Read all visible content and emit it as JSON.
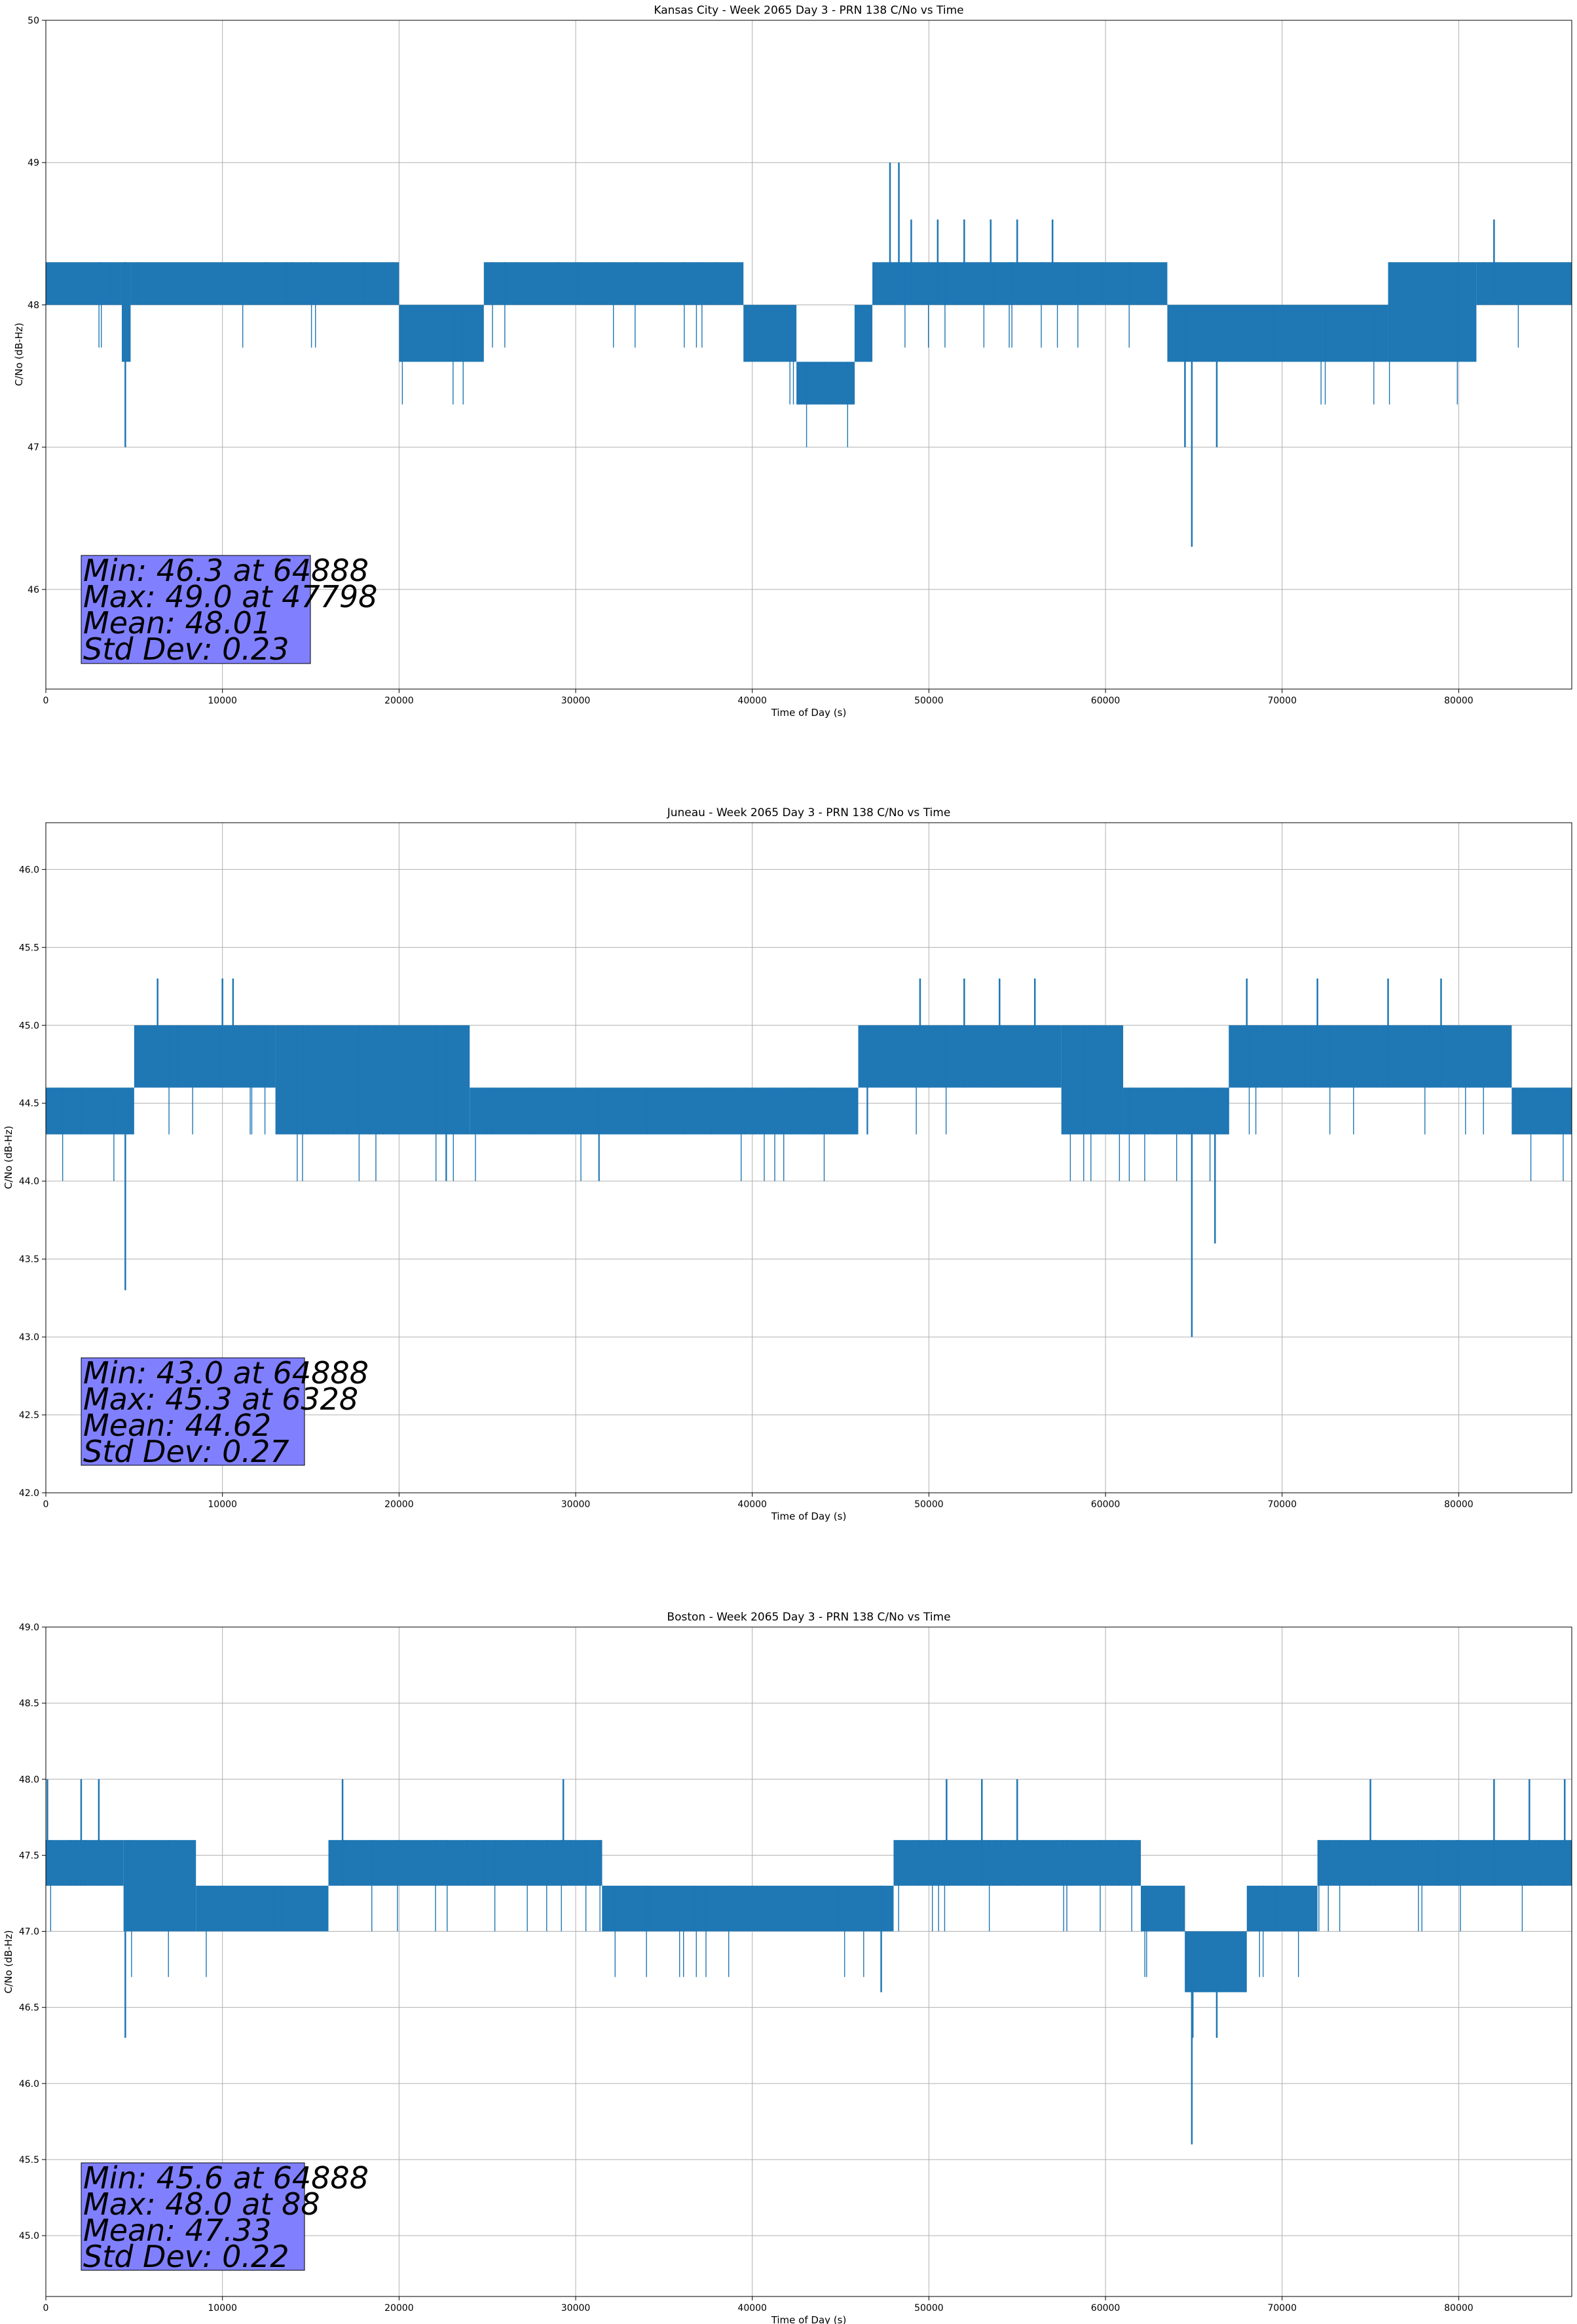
{
  "chart_data": [
    {
      "type": "line",
      "title": "Kansas City - Week 2065 Day 3 - PRN 138 C/No vs Time",
      "xlabel": "Time of Day (s)",
      "ylabel": "C/No (dB-Hz)",
      "xlim": [
        0,
        86400
      ],
      "ylim": [
        45.3,
        50.0
      ],
      "xticks": [
        0,
        10000,
        20000,
        30000,
        40000,
        50000,
        60000,
        70000,
        80000
      ],
      "yticks": [
        46,
        47,
        48,
        49,
        50
      ],
      "ytick_decimals": 0,
      "grid": true,
      "color": "#1f77b4",
      "quantum": 0.3,
      "base": 48.0,
      "band_segments": [
        {
          "x": [
            0,
            4300
          ],
          "lo": 48.0,
          "hi": 48.3
        },
        {
          "x": [
            4300,
            4800
          ],
          "lo": 47.6,
          "hi": 48.3
        },
        {
          "x": [
            4800,
            20000
          ],
          "lo": 48.0,
          "hi": 48.3
        },
        {
          "x": [
            20000,
            24800
          ],
          "lo": 47.6,
          "hi": 48.0
        },
        {
          "x": [
            24800,
            39500
          ],
          "lo": 48.0,
          "hi": 48.3
        },
        {
          "x": [
            39500,
            42500
          ],
          "lo": 47.6,
          "hi": 48.0
        },
        {
          "x": [
            42500,
            45800
          ],
          "lo": 47.3,
          "hi": 47.6
        },
        {
          "x": [
            45800,
            46800
          ],
          "lo": 47.6,
          "hi": 48.0
        },
        {
          "x": [
            46800,
            63500
          ],
          "lo": 48.0,
          "hi": 48.3
        },
        {
          "x": [
            63500,
            76000
          ],
          "lo": 47.6,
          "hi": 48.0
        },
        {
          "x": [
            76000,
            81000
          ],
          "lo": 47.6,
          "hi": 48.3
        },
        {
          "x": [
            81000,
            86400
          ],
          "lo": 48.0,
          "hi": 48.3
        }
      ],
      "spikes": [
        {
          "x": 4500,
          "lo": 47.0,
          "hi": 48.3
        },
        {
          "x": 47798,
          "lo": 48.0,
          "hi": 49.0
        },
        {
          "x": 48300,
          "lo": 48.0,
          "hi": 49.0
        },
        {
          "x": 49000,
          "lo": 48.0,
          "hi": 48.6
        },
        {
          "x": 50500,
          "lo": 48.0,
          "hi": 48.6
        },
        {
          "x": 52000,
          "lo": 48.0,
          "hi": 48.6
        },
        {
          "x": 53500,
          "lo": 48.0,
          "hi": 48.6
        },
        {
          "x": 55000,
          "lo": 48.0,
          "hi": 48.6
        },
        {
          "x": 57000,
          "lo": 48.0,
          "hi": 48.6
        },
        {
          "x": 64888,
          "lo": 46.3,
          "hi": 48.0
        },
        {
          "x": 64500,
          "lo": 47.0,
          "hi": 48.0
        },
        {
          "x": 66300,
          "lo": 47.0,
          "hi": 48.0
        },
        {
          "x": 82000,
          "lo": 48.0,
          "hi": 48.6
        }
      ],
      "stats": {
        "min": "Min: 46.3 at 64888",
        "max": "Max: 49.0 at 47798",
        "mean": "Mean: 48.01",
        "std": "Std Dev: 0.23"
      }
    },
    {
      "type": "line",
      "title": "Juneau - Week 2065 Day 3 - PRN 138 C/No vs Time",
      "xlabel": "Time of Day (s)",
      "ylabel": "C/No (dB-Hz)",
      "xlim": [
        0,
        86400
      ],
      "ylim": [
        42.0,
        46.3
      ],
      "xticks": [
        0,
        10000,
        20000,
        30000,
        40000,
        50000,
        60000,
        70000,
        80000
      ],
      "yticks": [
        42.0,
        42.5,
        43.0,
        43.5,
        44.0,
        44.5,
        45.0,
        45.5,
        46.0
      ],
      "ytick_decimals": 1,
      "grid": true,
      "color": "#1f77b4",
      "quantum": 0.3,
      "base": 44.6,
      "band_segments": [
        {
          "x": [
            0,
            5000
          ],
          "lo": 44.3,
          "hi": 44.6
        },
        {
          "x": [
            5000,
            13000
          ],
          "lo": 44.6,
          "hi": 45.0
        },
        {
          "x": [
            13000,
            24000
          ],
          "lo": 44.3,
          "hi": 45.0
        },
        {
          "x": [
            24000,
            46000
          ],
          "lo": 44.3,
          "hi": 44.6
        },
        {
          "x": [
            46000,
            57500
          ],
          "lo": 44.6,
          "hi": 45.0
        },
        {
          "x": [
            57500,
            61000
          ],
          "lo": 44.3,
          "hi": 45.0
        },
        {
          "x": [
            61000,
            67000
          ],
          "lo": 44.3,
          "hi": 44.6
        },
        {
          "x": [
            67000,
            83000
          ],
          "lo": 44.6,
          "hi": 45.0
        },
        {
          "x": [
            83000,
            86400
          ],
          "lo": 44.3,
          "hi": 44.6
        }
      ],
      "spikes": [
        {
          "x": 4500,
          "lo": 43.3,
          "hi": 44.6
        },
        {
          "x": 6328,
          "lo": 44.6,
          "hi": 45.3
        },
        {
          "x": 10000,
          "lo": 44.6,
          "hi": 45.3
        },
        {
          "x": 10600,
          "lo": 44.6,
          "hi": 45.3
        },
        {
          "x": 49500,
          "lo": 44.6,
          "hi": 45.3
        },
        {
          "x": 52000,
          "lo": 44.6,
          "hi": 45.3
        },
        {
          "x": 54000,
          "lo": 44.6,
          "hi": 45.3
        },
        {
          "x": 56000,
          "lo": 44.6,
          "hi": 45.3
        },
        {
          "x": 64888,
          "lo": 43.0,
          "hi": 44.6
        },
        {
          "x": 66200,
          "lo": 43.6,
          "hi": 44.6
        },
        {
          "x": 68000,
          "lo": 44.6,
          "hi": 45.3
        },
        {
          "x": 72000,
          "lo": 44.6,
          "hi": 45.3
        },
        {
          "x": 76000,
          "lo": 44.6,
          "hi": 45.3
        },
        {
          "x": 79000,
          "lo": 44.6,
          "hi": 45.3
        }
      ],
      "stats": {
        "min": "Min: 43.0 at 64888",
        "max": "Max: 45.3 at 6328",
        "mean": "Mean: 44.62",
        "std": "Std Dev: 0.27"
      }
    },
    {
      "type": "line",
      "title": "Boston - Week 2065 Day 3 - PRN 138 C/No vs Time",
      "xlabel": "Time of Day (s)",
      "ylabel": "C/No (dB-Hz)",
      "xlim": [
        0,
        86400
      ],
      "ylim": [
        44.6,
        49.0
      ],
      "xticks": [
        0,
        10000,
        20000,
        30000,
        40000,
        50000,
        60000,
        70000,
        80000
      ],
      "yticks": [
        45.0,
        45.5,
        46.0,
        46.5,
        47.0,
        47.5,
        48.0,
        48.5,
        49.0
      ],
      "ytick_decimals": 1,
      "grid": true,
      "color": "#1f77b4",
      "quantum": 0.3,
      "base": 47.3,
      "band_segments": [
        {
          "x": [
            0,
            4400
          ],
          "lo": 47.3,
          "hi": 47.6
        },
        {
          "x": [
            4400,
            8500
          ],
          "lo": 47.0,
          "hi": 47.6
        },
        {
          "x": [
            8500,
            16000
          ],
          "lo": 47.0,
          "hi": 47.3
        },
        {
          "x": [
            16000,
            31500
          ],
          "lo": 47.3,
          "hi": 47.6
        },
        {
          "x": [
            31500,
            48000
          ],
          "lo": 47.0,
          "hi": 47.3
        },
        {
          "x": [
            48000,
            62000
          ],
          "lo": 47.3,
          "hi": 47.6
        },
        {
          "x": [
            62000,
            64500
          ],
          "lo": 47.0,
          "hi": 47.3
        },
        {
          "x": [
            64500,
            68000
          ],
          "lo": 46.6,
          "hi": 47.0
        },
        {
          "x": [
            68000,
            72000
          ],
          "lo": 47.0,
          "hi": 47.3
        },
        {
          "x": [
            72000,
            86400
          ],
          "lo": 47.3,
          "hi": 47.6
        }
      ],
      "spikes": [
        {
          "x": 88,
          "lo": 47.3,
          "hi": 48.0
        },
        {
          "x": 2000,
          "lo": 47.3,
          "hi": 48.0
        },
        {
          "x": 3000,
          "lo": 47.3,
          "hi": 48.0
        },
        {
          "x": 4500,
          "lo": 46.3,
          "hi": 47.3
        },
        {
          "x": 16800,
          "lo": 47.3,
          "hi": 48.0
        },
        {
          "x": 29300,
          "lo": 47.3,
          "hi": 48.0
        },
        {
          "x": 47300,
          "lo": 46.6,
          "hi": 47.3
        },
        {
          "x": 51000,
          "lo": 47.3,
          "hi": 48.0
        },
        {
          "x": 53000,
          "lo": 47.3,
          "hi": 48.0
        },
        {
          "x": 55000,
          "lo": 47.3,
          "hi": 48.0
        },
        {
          "x": 64888,
          "lo": 45.6,
          "hi": 47.0
        },
        {
          "x": 66300,
          "lo": 46.3,
          "hi": 47.0
        },
        {
          "x": 75000,
          "lo": 47.3,
          "hi": 48.0
        },
        {
          "x": 82000,
          "lo": 47.3,
          "hi": 48.0
        },
        {
          "x": 84000,
          "lo": 47.3,
          "hi": 48.0
        },
        {
          "x": 86000,
          "lo": 47.3,
          "hi": 48.0
        }
      ],
      "stats": {
        "min": "Min: 45.6 at 64888",
        "max": "Max: 48.0 at 88",
        "mean": "Mean: 47.33",
        "std": "Std Dev: 0.22"
      }
    }
  ]
}
